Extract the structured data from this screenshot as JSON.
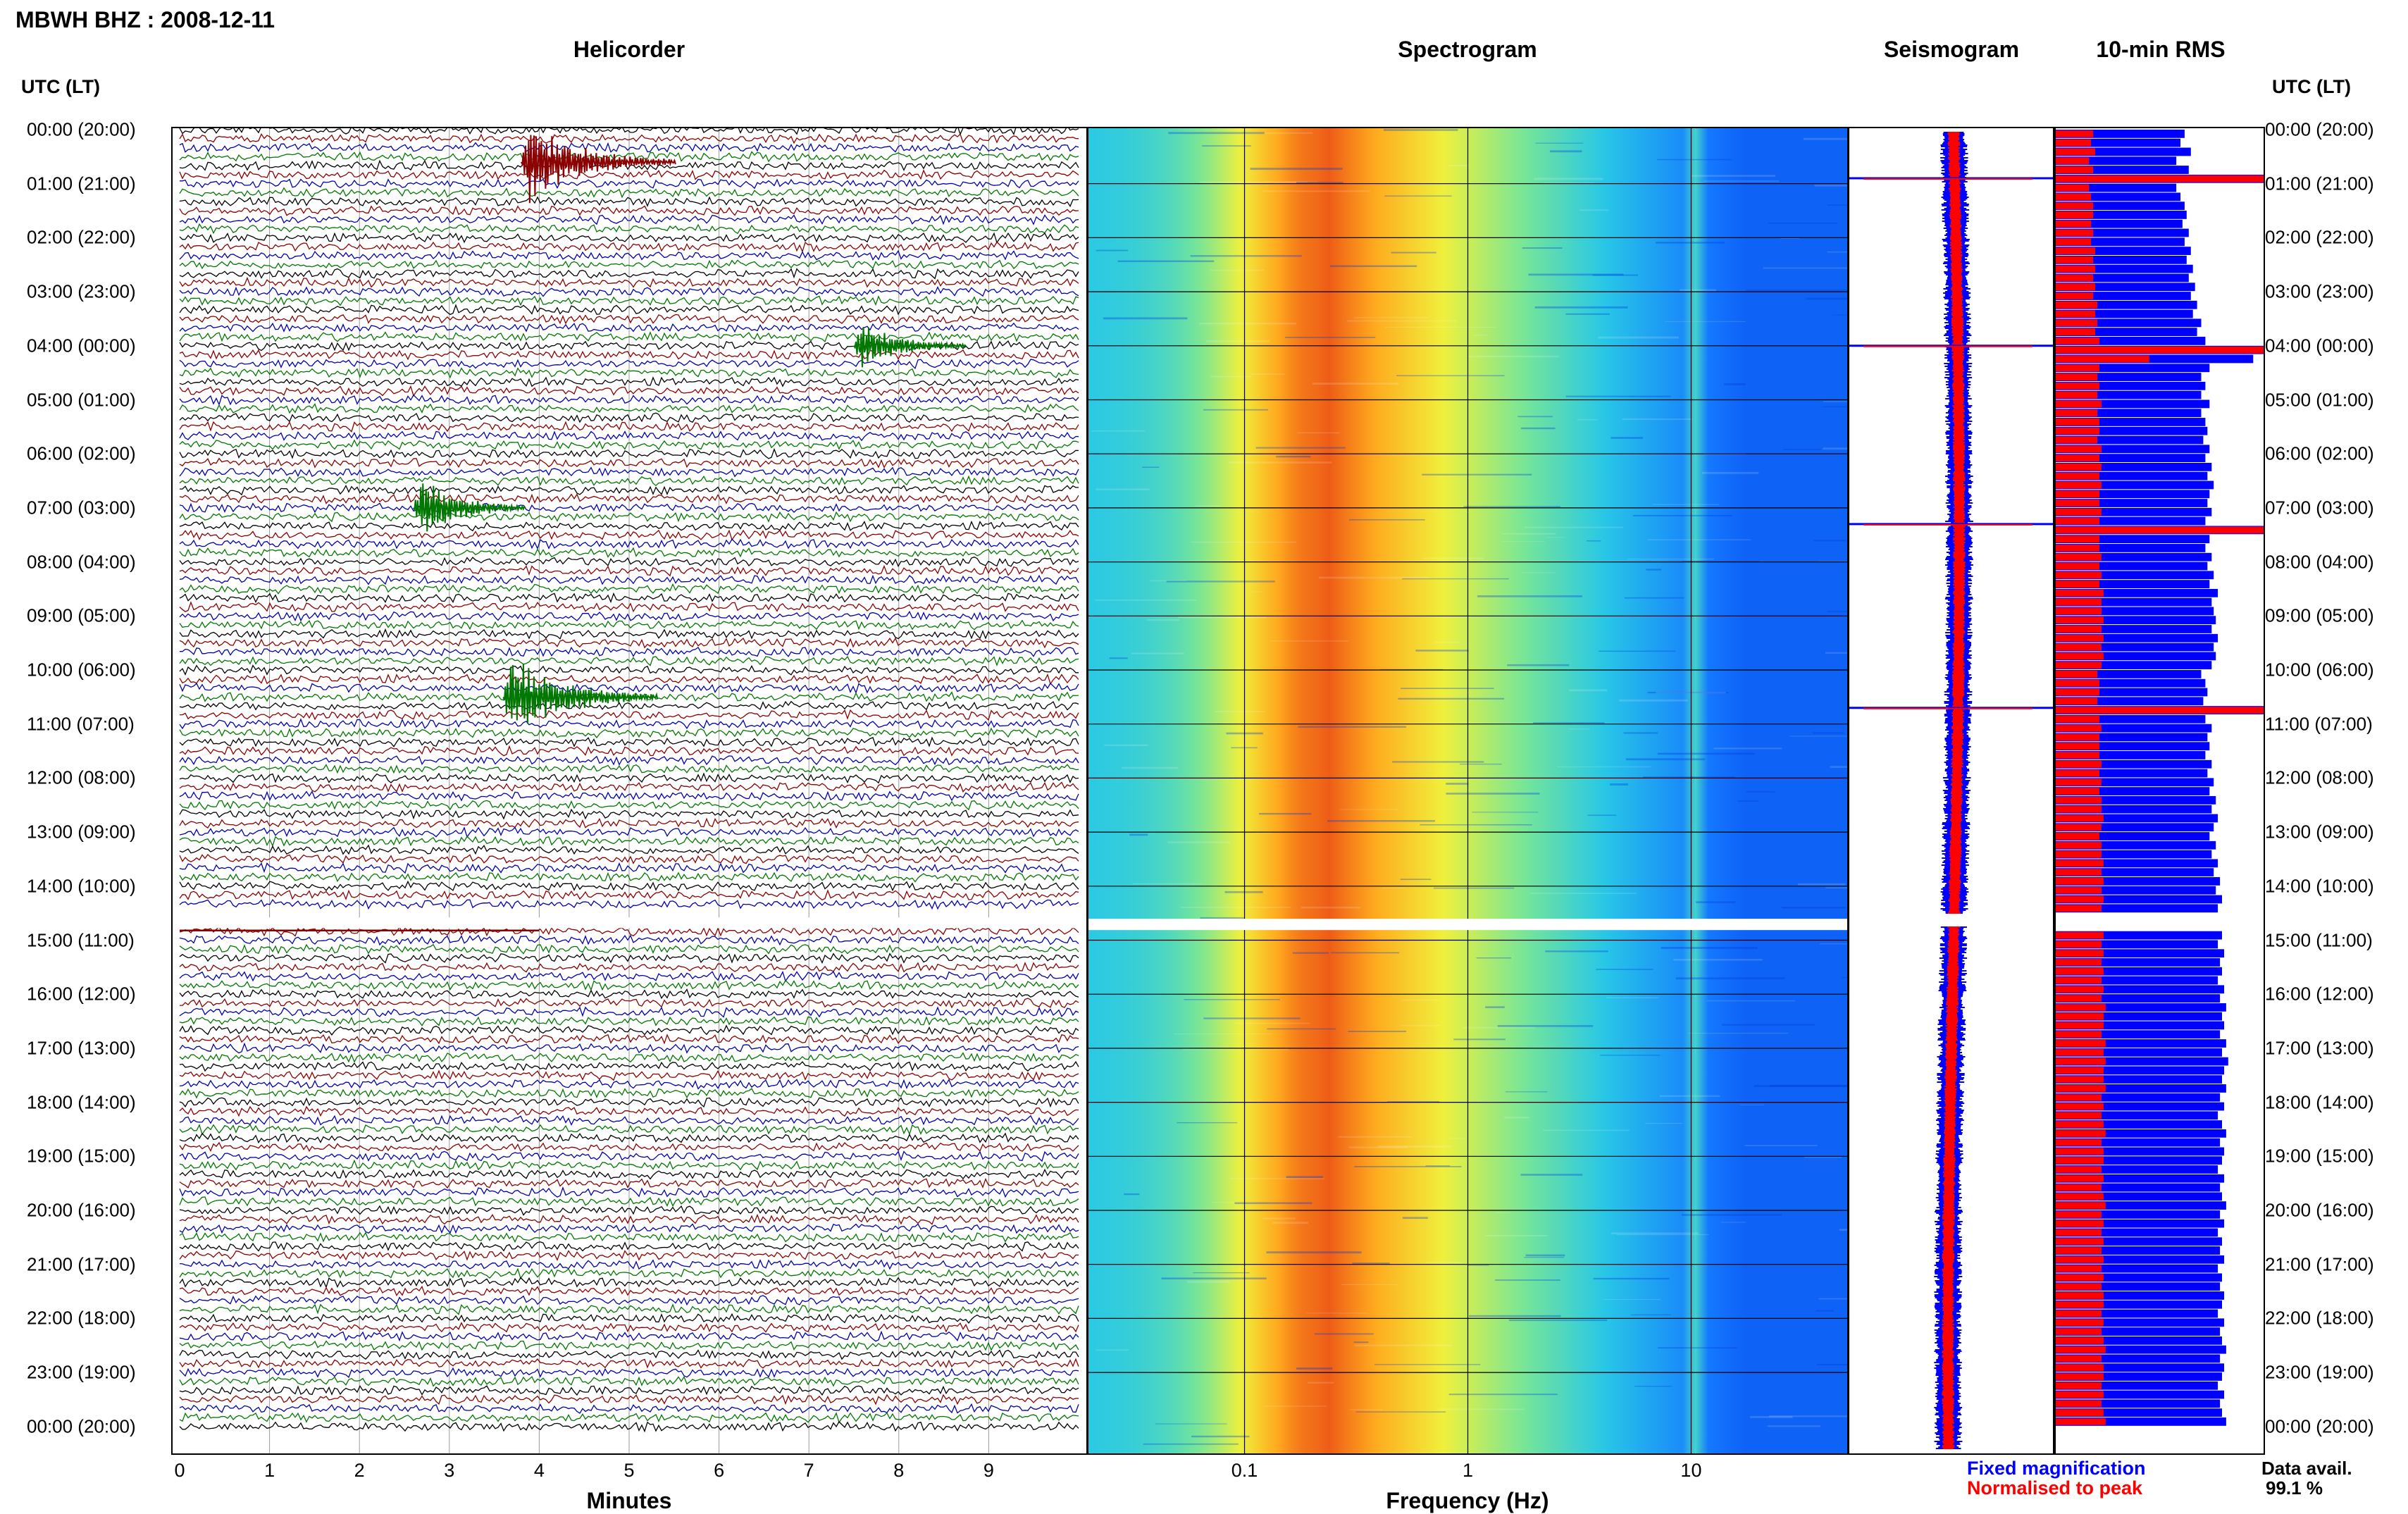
{
  "header": {
    "station_title": "MBWH BHZ : 2008-12-11",
    "utc_label_left": "UTC (LT)",
    "utc_label_right": "UTC (LT)"
  },
  "panels": {
    "helicorder": "Helicorder",
    "spectrogram": "Spectrogram",
    "seismogram": "Seismogram",
    "rms": "10-min RMS"
  },
  "axes": {
    "minutes_title": "Minutes",
    "frequency_title": "Frequency (Hz)"
  },
  "legend": {
    "fixed": "Fixed magnification",
    "normalised": "Normalised to peak",
    "fixed_color": "#0000ff",
    "normalised_color": "#ff0000"
  },
  "availability": {
    "label": "Data avail.",
    "value": "99.1 %"
  },
  "chart_data": [
    {
      "type": "line",
      "name": "helicorder",
      "x_ticks": [
        "0",
        "1",
        "2",
        "3",
        "4",
        "5",
        "6",
        "7",
        "8",
        "9"
      ],
      "xlabel": "Minutes",
      "xlim": [
        0,
        10
      ],
      "row_labels": [
        "00:00 (20:00)",
        "01:00 (21:00)",
        "02:00 (22:00)",
        "03:00 (23:00)",
        "04:00 (00:00)",
        "05:00 (01:00)",
        "06:00 (02:00)",
        "07:00 (03:00)",
        "08:00 (04:00)",
        "09:00 (05:00)",
        "10:00 (06:00)",
        "11:00 (07:00)",
        "12:00 (08:00)",
        "13:00 (09:00)",
        "14:00 (10:00)",
        "15:00 (11:00)",
        "16:00 (12:00)",
        "17:00 (13:00)",
        "18:00 (14:00)",
        "19:00 (15:00)",
        "20:00 (16:00)",
        "21:00 (17:00)",
        "22:00 (18:00)",
        "23:00 (19:00)",
        "00:00 (20:00)"
      ],
      "trace_colors": [
        "#000000",
        "#8b0000",
        "#0000aa",
        "#007700"
      ],
      "events": [
        {
          "hour": 0.6,
          "minute": 3.8,
          "amplitude": 5,
          "color": "#8b0000"
        },
        {
          "hour": 4.0,
          "minute": 7.5,
          "amplitude": 3,
          "color": "#007700"
        },
        {
          "hour": 7.0,
          "minute": 2.6,
          "amplitude": 4,
          "color": "#007700"
        },
        {
          "hour": 10.5,
          "minute": 3.6,
          "amplitude": 5,
          "color": "#007700"
        }
      ],
      "gap": {
        "hour_start": 14.5,
        "hour_end": 14.75
      }
    },
    {
      "type": "heatmap",
      "name": "spectrogram",
      "xlabel": "Frequency (Hz)",
      "x_scale": "log",
      "xlim": [
        0.02,
        50
      ],
      "x_ticks": [
        "0.1",
        "1",
        "10"
      ],
      "peak_frequency_hz": 0.22,
      "line_frequency_hz": 11,
      "gap": {
        "hour_start": 14.5,
        "hour_end": 14.75
      }
    },
    {
      "type": "line",
      "name": "seismogram",
      "series": [
        {
          "name": "Fixed magnification"
        },
        {
          "name": "Normalised to peak"
        }
      ],
      "spike_hours": [
        0.9,
        4.0,
        7.3,
        10.7
      ]
    },
    {
      "type": "bar",
      "name": "10-min RMS",
      "series": [
        {
          "name": "Fixed magnification"
        },
        {
          "name": "Normalised to peak"
        }
      ],
      "blue_values": [
        0.62,
        0.6,
        0.65,
        0.58,
        0.64,
        0.61,
        0.58,
        0.6,
        0.62,
        0.63,
        0.61,
        0.64,
        0.62,
        0.65,
        0.63,
        0.66,
        0.64,
        0.67,
        0.65,
        0.68,
        0.66,
        0.7,
        0.68,
        0.72,
        0.7,
        0.95,
        0.74,
        0.7,
        0.72,
        0.7,
        0.74,
        0.7,
        0.72,
        0.73,
        0.71,
        0.74,
        0.72,
        0.75,
        0.73,
        0.76,
        0.74,
        0.73,
        0.75,
        0.72,
        0.76,
        0.74,
        0.72,
        0.75,
        0.73,
        0.76,
        0.74,
        0.78,
        0.75,
        0.76,
        0.77,
        0.75,
        0.78,
        0.76,
        0.77,
        0.75,
        0.7,
        0.72,
        0.73,
        0.71,
        0.74,
        0.72,
        0.75,
        0.73,
        0.74,
        0.72,
        0.75,
        0.73,
        0.76,
        0.74,
        0.77,
        0.75,
        0.78,
        0.76,
        0.74,
        0.77,
        0.75,
        0.78,
        0.76,
        0.79,
        0.77,
        0.8,
        0.78,
        0.79,
        0.77,
        0.8,
        0.78,
        0.81,
        0.79,
        0.8,
        0.78,
        0.81,
        0.79,
        0.82,
        0.8,
        0.81,
        0.79,
        0.82,
        0.8,
        0.83,
        0.81,
        0.8,
        0.82,
        0.79,
        0.81,
        0.78,
        0.8,
        0.82,
        0.79,
        0.81,
        0.8,
        0.78,
        0.81,
        0.79,
        0.8,
        0.82,
        0.79,
        0.81,
        0.78,
        0.8,
        0.79,
        0.81,
        0.78,
        0.8,
        0.79,
        0.81,
        0.8,
        0.78,
        0.81,
        0.79,
        0.8,
        0.82,
        0.79,
        0.81,
        0.8,
        0.78,
        0.81,
        0.79,
        0.8,
        0.82
      ],
      "red_values": [
        0.18,
        0.17,
        0.19,
        0.16,
        0.18,
        0.17,
        0.16,
        0.17,
        0.18,
        0.18,
        0.17,
        0.18,
        0.17,
        0.19,
        0.18,
        0.19,
        0.18,
        0.19,
        0.18,
        0.2,
        0.19,
        0.2,
        0.19,
        0.21,
        0.2,
        0.45,
        0.21,
        0.2,
        0.21,
        0.2,
        0.22,
        0.2,
        0.21,
        0.21,
        0.2,
        0.22,
        0.21,
        0.22,
        0.21,
        0.22,
        0.21,
        0.21,
        0.22,
        0.21,
        0.22,
        0.21,
        0.21,
        0.22,
        0.21,
        0.22,
        0.21,
        0.23,
        0.22,
        0.22,
        0.23,
        0.22,
        0.23,
        0.22,
        0.23,
        0.22,
        0.2,
        0.21,
        0.21,
        0.2,
        0.21,
        0.21,
        0.22,
        0.21,
        0.21,
        0.21,
        0.22,
        0.21,
        0.22,
        0.21,
        0.22,
        0.22,
        0.23,
        0.22,
        0.21,
        0.22,
        0.22,
        0.23,
        0.22,
        0.23,
        0.22,
        0.23,
        0.22,
        0.23,
        0.22,
        0.23,
        0.22,
        0.23,
        0.22,
        0.23,
        0.22,
        0.23,
        0.22,
        0.24,
        0.23,
        0.23,
        0.22,
        0.24,
        0.23,
        0.24,
        0.23,
        0.23,
        0.24,
        0.22,
        0.23,
        0.22,
        0.23,
        0.24,
        0.22,
        0.23,
        0.23,
        0.22,
        0.23,
        0.22,
        0.23,
        0.24,
        0.22,
        0.23,
        0.22,
        0.23,
        0.22,
        0.23,
        0.22,
        0.23,
        0.22,
        0.23,
        0.23,
        0.22,
        0.23,
        0.22,
        0.23,
        0.24,
        0.22,
        0.23,
        0.23,
        0.22,
        0.23,
        0.22,
        0.23,
        0.24
      ],
      "spike_hours": [
        0.9,
        4.0,
        7.3,
        10.7
      ]
    }
  ]
}
